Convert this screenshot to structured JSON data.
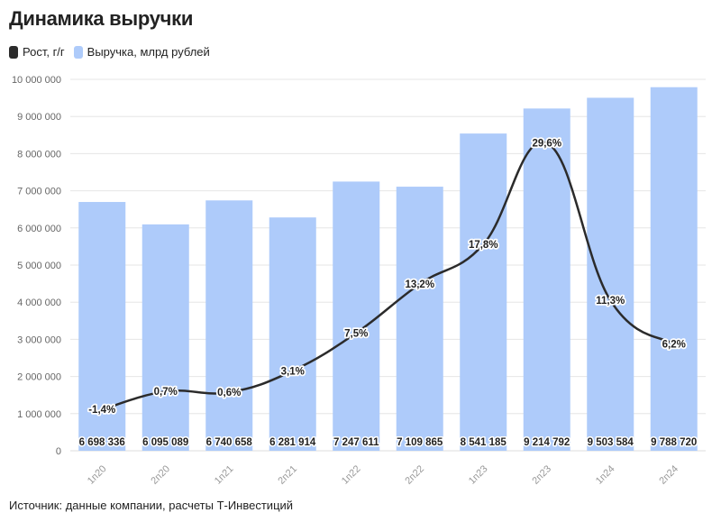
{
  "title": "Динамика выручки",
  "source": "Источник: данные компании, расчеты Т-Инвестиций",
  "colors": {
    "bars": "#aecbfa",
    "line": "#2b2b2b",
    "grid": "#e6e6e6",
    "axis": "#dddddd"
  },
  "chart_data": {
    "type": "bar",
    "categories": [
      "1п20",
      "2п20",
      "1п21",
      "2п21",
      "1п22",
      "2п22",
      "1п23",
      "2п23",
      "1п24",
      "2п24"
    ],
    "ylim": [
      0,
      10000000
    ],
    "yticks": [
      0,
      1000000,
      2000000,
      3000000,
      4000000,
      5000000,
      6000000,
      7000000,
      8000000,
      9000000,
      10000000
    ],
    "ytick_labels": [
      "0",
      "1 000 000",
      "2 000 000",
      "3 000 000",
      "4 000 000",
      "5 000 000",
      "6 000 000",
      "7 000 000",
      "8 000 000",
      "9 000 000",
      "10 000 000"
    ],
    "series": [
      {
        "name": "Выручка, млрд рублей",
        "type": "bar",
        "values": [
          6698336,
          6095089,
          6740658,
          6281914,
          7247611,
          7109865,
          8541185,
          9214792,
          9503584,
          9788720
        ],
        "labels": [
          "6 698 336",
          "6 095 089",
          "6 740 658",
          "6 281 914",
          "7 247 611",
          "7 109 865",
          "8 541 185",
          "9 214 792",
          "9 503 584",
          "9 788 720"
        ]
      },
      {
        "name": "Рост, г/г",
        "type": "line",
        "values": [
          -1.4,
          0.7,
          0.6,
          3.1,
          7.5,
          13.2,
          17.8,
          29.6,
          11.3,
          6.2
        ],
        "labels": [
          "-1,4%",
          "0,7%",
          "0,6%",
          "3,1%",
          "7,5%",
          "13,2%",
          "17,8%",
          "29,6%",
          "11,3%",
          "6,2%"
        ],
        "ylim": [
          -6.2,
          37
        ]
      }
    ],
    "legend_position": "top-left",
    "grid": true
  }
}
